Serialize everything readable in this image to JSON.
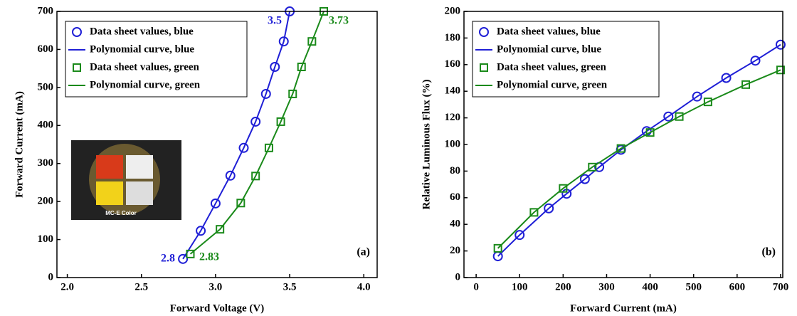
{
  "chart_data": [
    {
      "type": "line",
      "x_label": "Forward Voltage (V)",
      "y_label": "Forward Current (mA)",
      "xlim": [
        1.93,
        4.09
      ],
      "ylim": [
        0,
        700
      ],
      "xticks": [
        {
          "value": 2,
          "label": "2.0"
        },
        2.5,
        {
          "value": 3,
          "label": "3.0"
        },
        3.5,
        {
          "value": 4,
          "label": "4.0"
        }
      ],
      "yticks": [
        0,
        100,
        200,
        300,
        400,
        500,
        600,
        700
      ],
      "legend": "upper left",
      "annotations": [
        "3.5",
        "3.73",
        "2.8",
        "2.83",
        "(a)",
        "MC-E Color"
      ],
      "series": [
        {
          "name": "Data sheet values, blue",
          "color": "#1f1fd6",
          "marker": "circle",
          "x": [
            2.78,
            2.9,
            3.0,
            3.1,
            3.19,
            3.27,
            3.34,
            3.4,
            3.46,
            3.5
          ],
          "values": [
            49,
            123,
            195,
            268,
            341,
            410,
            483,
            554,
            621,
            700
          ]
        },
        {
          "name": "Polynomial curve, blue",
          "color": "#1f1fd6",
          "x": [
            2.78,
            2.9,
            3.0,
            3.1,
            3.19,
            3.27,
            3.34,
            3.4,
            3.46,
            3.5
          ],
          "values": [
            49,
            123,
            195,
            268,
            341,
            410,
            483,
            554,
            621,
            700
          ]
        },
        {
          "name": "Data sheet values, green",
          "color": "#1a8a1a",
          "marker": "square",
          "x": [
            2.83,
            3.03,
            3.17,
            3.27,
            3.36,
            3.44,
            3.52,
            3.58,
            3.65,
            3.73
          ],
          "values": [
            62,
            127,
            196,
            267,
            341,
            410,
            483,
            554,
            621,
            700
          ]
        },
        {
          "name": "Polynomial curve, green",
          "color": "#1a8a1a",
          "x": [
            2.83,
            3.03,
            3.17,
            3.27,
            3.36,
            3.44,
            3.52,
            3.58,
            3.65,
            3.73
          ],
          "values": [
            62,
            127,
            196,
            267,
            341,
            410,
            483,
            554,
            621,
            700
          ]
        }
      ]
    },
    {
      "type": "line",
      "x_label": "Forward Current (mA)",
      "y_label": "Relative Luminous Flux (%)",
      "xlim": [
        -28,
        705
      ],
      "ylim": [
        0,
        200
      ],
      "xticks": [
        0,
        100,
        200,
        300,
        400,
        500,
        600,
        700
      ],
      "yticks": [
        0,
        20,
        40,
        60,
        80,
        100,
        120,
        140,
        160,
        180,
        200
      ],
      "legend": "upper left",
      "annotations": [
        "(b)"
      ],
      "series": [
        {
          "name": "Data sheet values, blue",
          "color": "#1f1fd6",
          "marker": "circle",
          "x": [
            50,
            100,
            167,
            208,
            250,
            283,
            333,
            392,
            442,
            508,
            575,
            642,
            700
          ],
          "values": [
            16,
            32,
            52,
            63,
            74,
            83,
            96,
            110,
            121,
            136,
            150,
            163,
            175
          ]
        },
        {
          "name": "Polynomial curve, blue",
          "color": "#1f1fd6",
          "x": [
            50,
            100,
            167,
            208,
            250,
            283,
            333,
            392,
            442,
            508,
            575,
            642,
            700
          ],
          "values": [
            16,
            32,
            52,
            63,
            74,
            83,
            96,
            110,
            121,
            136,
            150,
            163,
            175
          ]
        },
        {
          "name": "Data sheet values, green",
          "color": "#1a8a1a",
          "marker": "square",
          "x": [
            50,
            133,
            200,
            267,
            333,
            400,
            467,
            533,
            620,
            700
          ],
          "values": [
            22,
            49,
            67,
            83,
            97,
            109,
            121,
            132,
            145,
            156
          ]
        },
        {
          "name": "Polynomial curve, green",
          "color": "#1a8a1a",
          "x": [
            50,
            133,
            200,
            267,
            333,
            400,
            467,
            533,
            620,
            700
          ],
          "values": [
            22,
            49,
            67,
            83,
            97,
            109,
            121,
            132,
            145,
            156
          ]
        }
      ]
    }
  ]
}
